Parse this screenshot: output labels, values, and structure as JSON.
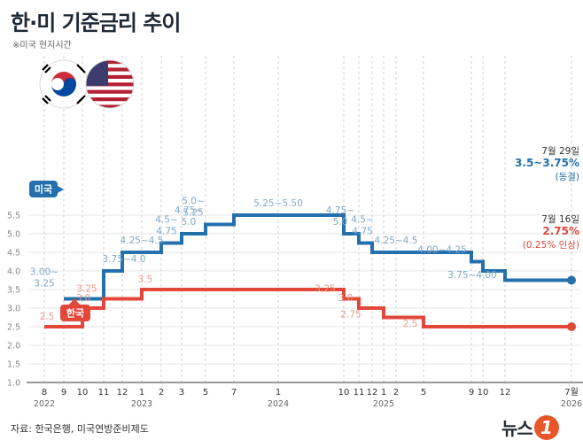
{
  "title": "한·미 기준금리 추이",
  "note": "※미국 현지시간",
  "source": "자료: 한국은행, 미국연방준비제도",
  "logo": {
    "text": "뉴스",
    "mark": "1"
  },
  "colors": {
    "us": "#2470ad",
    "kr": "#e2473a",
    "us_label": "#7fa9c9",
    "kr_label": "#e99a88",
    "grid": "#bbbbbb",
    "axis": "#333333"
  },
  "legend": {
    "us": "미국",
    "kr": "한국"
  },
  "chart_data": {
    "type": "line",
    "ylim": [
      1.0,
      5.5
    ],
    "yticks": [
      "1.0",
      "1.5",
      "2.0",
      "2.5",
      "3.0",
      "3.5",
      "4.0",
      "4.5",
      "5.0",
      "5.5"
    ],
    "x_ticks": [
      {
        "label": "8",
        "sub": "2022"
      },
      {
        "label": "9",
        "sub": ""
      },
      {
        "label": "10",
        "sub": ""
      },
      {
        "label": "11",
        "sub": ""
      },
      {
        "label": "12",
        "sub": ""
      },
      {
        "label": "1",
        "sub": "2023"
      },
      {
        "label": "2",
        "sub": ""
      },
      {
        "label": "3",
        "sub": ""
      },
      {
        "label": "5",
        "sub": ""
      },
      {
        "label": "7",
        "sub": ""
      },
      {
        "label": "1",
        "sub": "2024"
      },
      {
        "label": "10",
        "sub": ""
      },
      {
        "label": "11",
        "sub": ""
      },
      {
        "label": "12",
        "sub": ""
      },
      {
        "label": "1",
        "sub": "2025"
      },
      {
        "label": "2",
        "sub": ""
      },
      {
        "label": "5",
        "sub": ""
      },
      {
        "label": "9",
        "sub": ""
      },
      {
        "label": "10",
        "sub": ""
      },
      {
        "label": "12",
        "sub": ""
      },
      {
        "label": "7월",
        "sub": "2026"
      }
    ],
    "series": [
      {
        "name": "미국",
        "steps": [
          {
            "tick": 1,
            "value": 3.25,
            "label": "3.00~\n3.25"
          },
          {
            "tick": 3,
            "value": 4.0,
            "label": "3.75~4.0"
          },
          {
            "tick": 4,
            "value": 4.5,
            "label": "4.25~4.5"
          },
          {
            "tick": 6,
            "value": 4.75,
            "label": "4.5~\n4.75"
          },
          {
            "tick": 7,
            "value": 5.0,
            "label": "4.75~\n5.0"
          },
          {
            "tick": 8,
            "value": 5.25,
            "label": "5.0~\n5.25"
          },
          {
            "tick": 9,
            "value": 5.5,
            "label": "5.25~5.50"
          },
          {
            "tick": 11,
            "value": 5.0,
            "label": "4.75~\n5.0"
          },
          {
            "tick": 12,
            "value": 4.75,
            "label": "4.5~\n4.75"
          },
          {
            "tick": 13,
            "value": 4.5,
            "label": "4.25~4.5"
          },
          {
            "tick": 17,
            "value": 4.25,
            "label": "4.00~4.25"
          },
          {
            "tick": 18,
            "value": 4.0,
            "label": "3.75~4.00"
          },
          {
            "tick": 19,
            "value": 3.75,
            "label": ""
          }
        ],
        "end_date": "7월 29일",
        "end_value": "3.5~3.75%",
        "end_note": "(동결)"
      },
      {
        "name": "한국",
        "steps": [
          {
            "tick": 0,
            "value": 2.5,
            "label": "2.5"
          },
          {
            "tick": 2,
            "value": 3.0,
            "label": "3.0"
          },
          {
            "tick": 3,
            "value": 3.25,
            "label": "3.25"
          },
          {
            "tick": 5,
            "value": 3.5,
            "label": "3.5"
          },
          {
            "tick": 11,
            "value": 3.25,
            "label": "3.25"
          },
          {
            "tick": 12,
            "value": 3.0,
            "label": "3.0"
          },
          {
            "tick": 14,
            "value": 2.75,
            "label": "2.75"
          },
          {
            "tick": 16,
            "value": 2.5,
            "label": "2.5"
          }
        ],
        "end_date": "7월 16일",
        "end_value": "2.75%",
        "end_note": "(0.25% 인상)"
      }
    ]
  }
}
